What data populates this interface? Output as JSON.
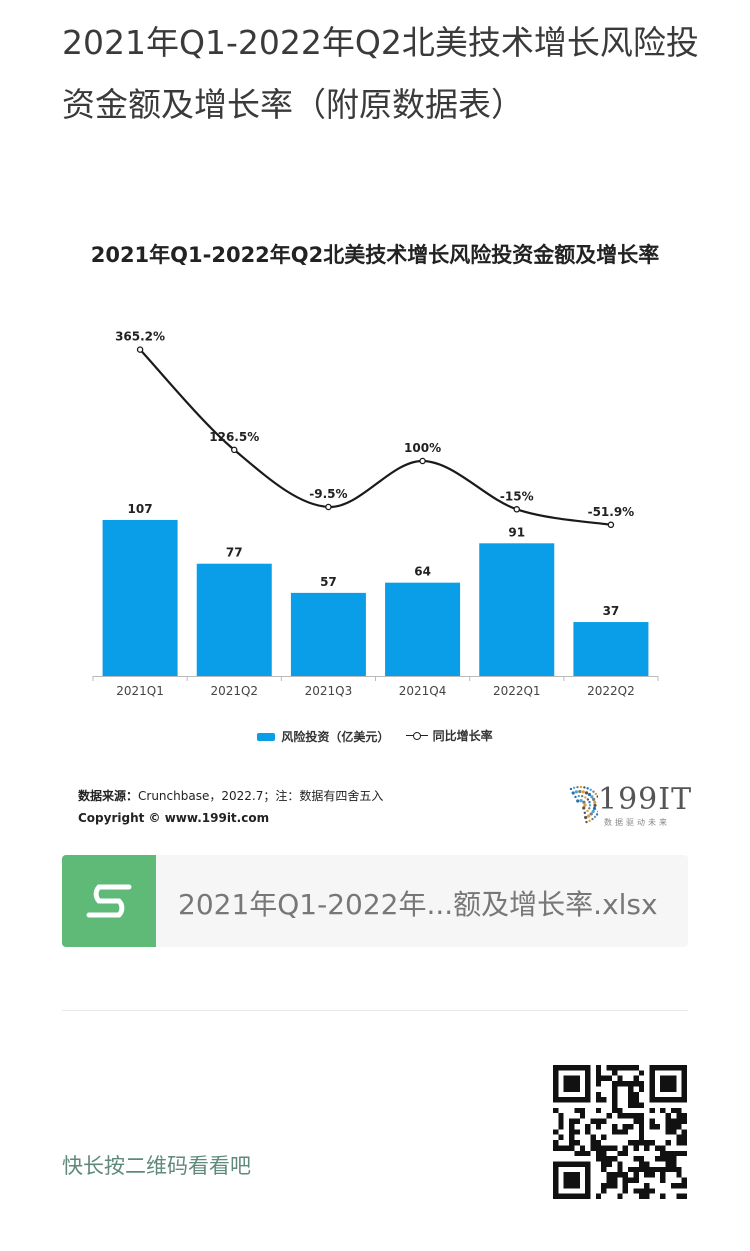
{
  "article": {
    "title": "2021年Q1-2022年Q2北美技术增长风险投资金额及增长率（附原数据表）"
  },
  "chart": {
    "title": "2021年Q1-2022年Q2北美技术增长风险投资金额及增长率",
    "legend": {
      "bar": "风险投资（亿美元）",
      "line": "同比增长率"
    },
    "source_label": "数据来源：",
    "source_text": "Crunchbase，2022.7；注：数据有四舍五入",
    "copyright_label": "Copyright ©",
    "copyright_text": " www.199it.com",
    "brand": {
      "number": "199IT",
      "tagline": "数据驱动未来"
    }
  },
  "chart_data": {
    "type": "bar",
    "categories": [
      "2021Q1",
      "2021Q2",
      "2021Q3",
      "2021Q4",
      "2022Q1",
      "2022Q2"
    ],
    "series": [
      {
        "name": "风险投资（亿美元）",
        "type": "bar",
        "values": [
          107,
          77,
          57,
          64,
          91,
          37
        ],
        "labels": [
          "107",
          "77",
          "57",
          "64",
          "91",
          "37"
        ],
        "color": "#0b9ee8"
      },
      {
        "name": "同比增长率",
        "type": "line",
        "values": [
          365.2,
          126.5,
          -9.5,
          100,
          -15,
          -51.9
        ],
        "labels": [
          "365.2%",
          "126.5%",
          "-9.5%",
          "100%",
          "-15%",
          "-51.9%"
        ],
        "color": "#1a1a1a"
      }
    ],
    "ylim": [
      0,
      120
    ],
    "y2lim": [
      -250,
      400
    ],
    "grid": false,
    "legend_position": "bottom"
  },
  "file": {
    "name": "2021年Q1-2022年...额及增长率.xlsx",
    "icon": "spreadsheet-icon"
  },
  "footer": {
    "prompt": "快长按二维码看看吧"
  }
}
